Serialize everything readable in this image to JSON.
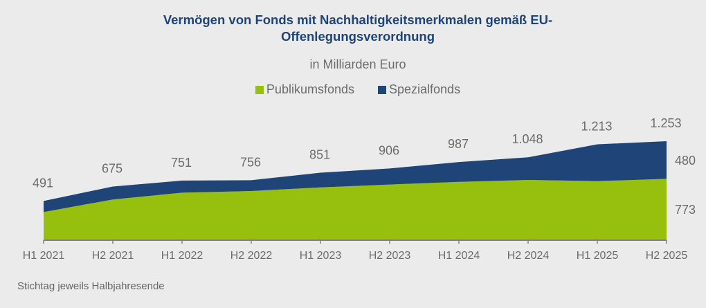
{
  "chart_data": {
    "type": "area",
    "stacked": true,
    "title": "Vermögen von Fonds mit Nachhaltigkeitsmerkmalen gemäß EU-Offenlegungsverordnung",
    "title_lines": [
      "Vermögen von Fonds mit Nachhaltigkeitsmerkmalen gemäß EU-",
      "Offenlegungsverordnung"
    ],
    "subtitle": "in Milliarden Euro",
    "xlabel": "",
    "ylabel": "",
    "categories": [
      "H1 2021",
      "H2 2021",
      "H1 2022",
      "H2 2022",
      "H1 2023",
      "H2 2023",
      "H1 2024",
      "H2 2024",
      "H1 2025",
      "H2 2025"
    ],
    "series": [
      {
        "name": "Publikumsfonds",
        "color": "#97bf0d",
        "values": [
          350,
          510,
          597,
          618,
          664,
          700,
          735,
          759,
          744,
          773
        ]
      },
      {
        "name": "Spezialfonds",
        "color": "#1f4478",
        "values": [
          141,
          165,
          154,
          138,
          187,
          206,
          252,
          289,
          469,
          480
        ]
      }
    ],
    "totals": [
      491,
      675,
      751,
      756,
      851,
      906,
      987,
      1048,
      1213,
      1253
    ],
    "total_labels": [
      "491",
      "675",
      "751",
      "756",
      "851",
      "906",
      "987",
      "1.048",
      "1.213",
      "1.253"
    ],
    "end_labels": {
      "Spezialfonds": "480",
      "Publikumsfonds": "773"
    },
    "ylim": [
      0,
      1253
    ],
    "grid": false,
    "legend_position": "top-center"
  },
  "footnote": "Stichtag jeweils Halbjahresende",
  "colors": {
    "background": "#ebebeb",
    "title": "#1f4478",
    "text": "#6b6b6b",
    "axis": "#7f7f7f"
  }
}
